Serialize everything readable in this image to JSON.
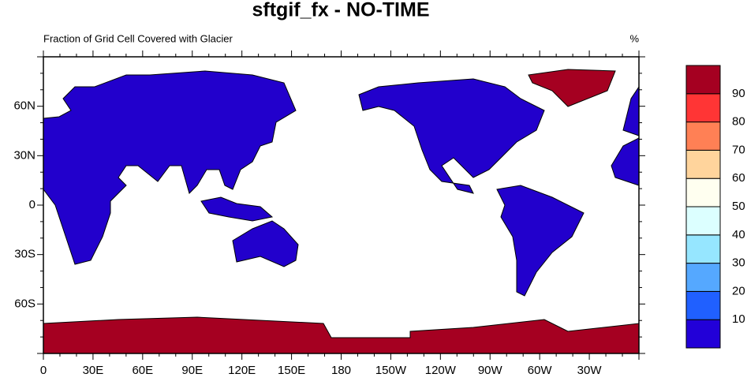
{
  "header": {
    "title": "sftgif_fx - NO-TIME"
  },
  "map": {
    "left_label": "Fraction of Grid Cell Covered with Glacier",
    "right_label": "%",
    "x_ticks": [
      "0",
      "30E",
      "60E",
      "90E",
      "120E",
      "150E",
      "180",
      "150W",
      "120W",
      "90W",
      "60W",
      "30W"
    ],
    "y_ticks": [
      "60N",
      "30N",
      "0",
      "30S",
      "60S"
    ]
  },
  "colorbar": {
    "labels": [
      "10",
      "20",
      "30",
      "40",
      "50",
      "60",
      "70",
      "80",
      "90"
    ],
    "colors": [
      "#2200d8",
      "#2060ff",
      "#55a8ff",
      "#96e6ff",
      "#dcffff",
      "#fffff0",
      "#ffd49c",
      "#ff8055",
      "#ff3535",
      "#a50021"
    ]
  }
}
